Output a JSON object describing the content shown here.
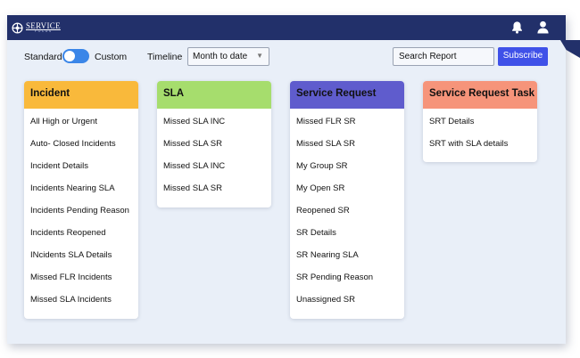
{
  "app": {
    "logo_main": "SERVICE",
    "logo_sub": "FOCUS"
  },
  "toolbar": {
    "standard_label": "Standard",
    "custom_label": "Custom",
    "timeline_label": "Timeline",
    "timeline_value": "Month to date",
    "search_placeholder": "Search Report",
    "subscribe_label": "Subscribe"
  },
  "cards": [
    {
      "title": "Incident",
      "color": "#f9b93b",
      "title_color": "#111111",
      "items": [
        "All High or Urgent",
        "Auto- Closed Incidents",
        "Incident Details",
        "Incidents Nearing SLA",
        "Incidents Pending Reason",
        "Incidents Reopened",
        "INcidents SLA Details",
        "Missed FLR Incidents",
        "Missed SLA Incidents"
      ]
    },
    {
      "title": "SLA",
      "color": "#a6dd6d",
      "title_color": "#111111",
      "items": [
        "Missed SLA INC",
        "Missed SLA SR",
        "Missed SLA INC",
        "Missed SLA SR"
      ]
    },
    {
      "title": "Service Request",
      "color": "#5f5ccd",
      "title_color": "#111111",
      "items": [
        "Missed FLR SR",
        "Missed SLA SR",
        "My Group SR",
        "My Open SR",
        "Reopened SR",
        "SR Details",
        "SR Nearing SLA",
        "SR Pending Reason",
        "Unassigned SR"
      ]
    },
    {
      "title": "Service Request Task",
      "color": "#f6947a",
      "title_color": "#111111",
      "items": [
        "SRT Details",
        "SRT with SLA details"
      ]
    }
  ]
}
